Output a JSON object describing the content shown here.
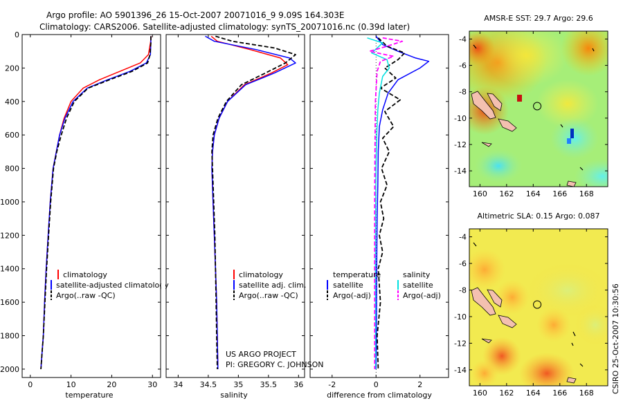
{
  "header": {
    "line1": "Argo profile: AO 5901396_26 15-Oct-2007 20071016_9 9.09S 164.303E",
    "line2": "Climatology: CARS2006. Satellite-adjusted climatology: synTS_20071016.nc (0.39d later)"
  },
  "side_stamp": "CSIRO 25-Oct-2007 10:30:56",
  "project_note": {
    "line1": "US ARGO PROJECT",
    "line2": "PI: GREGORY C. JOHNSON"
  },
  "colors": {
    "red": "#ff0000",
    "blue": "#0000ff",
    "black": "#000000",
    "cyan": "#00e0e0",
    "magenta": "#ff00ff"
  },
  "chart_data": [
    {
      "type": "line",
      "id": "temperature",
      "xlabel": "temperature",
      "xlim": [
        -2,
        32
      ],
      "ylim": [
        0,
        2050
      ],
      "xticks": [
        0,
        10,
        20,
        30
      ],
      "yticks": [
        0,
        200,
        400,
        600,
        800,
        1000,
        1200,
        1400,
        1600,
        1800,
        2000
      ],
      "ytick_labels": [
        "0",
        "200",
        "400",
        "600",
        "800",
        "1000",
        "1200",
        "1400",
        "1600",
        "1800",
        "2000"
      ],
      "legend": [
        {
          "label": "climatology",
          "color": "#ff0000",
          "dash": false
        },
        {
          "label": "satellite-adjusted climatology",
          "color": "#0000ff",
          "dash": false
        },
        {
          "label": "Argo(..raw -QC)",
          "color": "#000000",
          "dash": true
        }
      ],
      "series": [
        {
          "name": "climatology",
          "color": "#ff0000",
          "dash": false,
          "x": [
            29.7,
            29.5,
            29.0,
            27.0,
            22.0,
            17.0,
            13.0,
            10.0,
            8.3,
            7.2,
            6.4,
            5.6,
            4.9,
            4.4,
            3.9,
            3.5,
            3.2,
            2.9,
            2.6
          ],
          "y": [
            10,
            50,
            120,
            170,
            220,
            270,
            320,
            400,
            500,
            600,
            700,
            800,
            1000,
            1200,
            1400,
            1600,
            1800,
            1900,
            2000
          ]
        },
        {
          "name": "satellite-adjusted climatology",
          "color": "#0000ff",
          "dash": false,
          "x": [
            29.6,
            29.6,
            29.5,
            28.5,
            24.5,
            19.0,
            14.0,
            10.5,
            8.5,
            7.2,
            6.4,
            5.6,
            4.9,
            4.4,
            3.9,
            3.5,
            3.2,
            2.9,
            2.6
          ],
          "y": [
            10,
            50,
            120,
            170,
            220,
            270,
            320,
            400,
            500,
            600,
            700,
            800,
            1000,
            1200,
            1400,
            1600,
            1800,
            1900,
            2000
          ]
        },
        {
          "name": "Argo(..raw -QC)",
          "color": "#000000",
          "dash": true,
          "x": [
            29.6,
            29.6,
            29.4,
            28.8,
            25.0,
            19.5,
            14.2,
            10.8,
            8.9,
            7.6,
            6.5,
            5.7,
            5.0,
            4.5,
            4.0,
            3.6,
            3.2,
            2.9,
            2.6
          ],
          "y": [
            10,
            50,
            120,
            170,
            220,
            270,
            320,
            400,
            500,
            600,
            700,
            800,
            1000,
            1200,
            1400,
            1600,
            1800,
            1900,
            2000
          ]
        }
      ]
    },
    {
      "type": "line",
      "id": "salinity",
      "xlabel": "salinity",
      "xlim": [
        33.8,
        36.1
      ],
      "ylim": [
        0,
        2050
      ],
      "xticks": [
        34,
        34.5,
        35,
        35.5,
        36
      ],
      "xtick_labels": [
        "34",
        "34.5",
        "35",
        "35.5",
        "36"
      ],
      "legend": [
        {
          "label": "climatology",
          "color": "#ff0000",
          "dash": false
        },
        {
          "label": "satellite adj. clim.",
          "color": "#0000ff",
          "dash": false
        },
        {
          "label": "Argo(..raw -QC)",
          "color": "#000000",
          "dash": true
        }
      ],
      "series": [
        {
          "name": "climatology",
          "color": "#ff0000",
          "dash": false,
          "x": [
            34.55,
            34.65,
            35.2,
            35.7,
            35.82,
            35.55,
            35.1,
            34.82,
            34.68,
            34.6,
            34.57,
            34.56,
            34.58,
            34.6,
            34.62,
            34.64,
            34.65,
            34.66
          ],
          "y": [
            10,
            40,
            90,
            140,
            180,
            230,
            300,
            400,
            500,
            600,
            700,
            800,
            1000,
            1200,
            1400,
            1600,
            1800,
            2000
          ]
        },
        {
          "name": "satellite adj. clim.",
          "color": "#0000ff",
          "dash": false,
          "x": [
            34.45,
            34.6,
            35.3,
            35.85,
            35.95,
            35.6,
            35.12,
            34.82,
            34.68,
            34.6,
            34.57,
            34.56,
            34.58,
            34.6,
            34.62,
            34.64,
            34.65,
            34.66
          ],
          "y": [
            10,
            40,
            90,
            140,
            170,
            230,
            300,
            400,
            500,
            600,
            700,
            800,
            1000,
            1200,
            1400,
            1600,
            1800,
            2000
          ]
        },
        {
          "name": "Argo(..raw -QC)",
          "color": "#000000",
          "dash": true,
          "x": [
            34.62,
            34.9,
            35.6,
            35.95,
            35.78,
            35.45,
            35.05,
            34.8,
            34.66,
            34.58,
            34.56,
            34.57,
            34.59,
            34.61,
            34.62,
            34.63,
            34.64,
            34.65
          ],
          "y": [
            10,
            40,
            80,
            120,
            170,
            230,
            300,
            400,
            500,
            600,
            700,
            800,
            1000,
            1200,
            1400,
            1600,
            1800,
            2000
          ]
        }
      ]
    },
    {
      "type": "line",
      "id": "difference",
      "xlabel": "difference from climatology",
      "xlim": [
        -3,
        3.3
      ],
      "ylim": [
        0,
        2050
      ],
      "xticks": [
        -2,
        0,
        2
      ],
      "legend_temperature_title": "temperature",
      "legend_salinity_title": "salinity",
      "legend": [
        {
          "group": "temperature",
          "label": "satellite",
          "color": "#0000ff",
          "dash": false
        },
        {
          "group": "temperature",
          "label": "Argo(-adj)",
          "color": "#000000",
          "dash": true
        },
        {
          "group": "salinity",
          "label": "satellite",
          "color": "#00e0e0",
          "dash": false
        },
        {
          "group": "salinity",
          "label": "Argo(-adj)",
          "color": "#ff00ff",
          "dash": true
        }
      ],
      "series": [
        {
          "name": "temperature satellite",
          "color": "#0000ff",
          "dash": false,
          "x": [
            0.0,
            0.3,
            1.0,
            1.8,
            2.4,
            2.0,
            1.0,
            0.55,
            0.3,
            0.15,
            0.1,
            0.08,
            0.05,
            0.03,
            0.02,
            0.01,
            0.0
          ],
          "y": [
            10,
            60,
            100,
            140,
            160,
            200,
            270,
            350,
            450,
            550,
            700,
            900,
            1100,
            1400,
            1700,
            1900,
            2000
          ]
        },
        {
          "name": "temperature Argo(-adj)",
          "color": "#000000",
          "dash": true,
          "x": [
            0.1,
            0.5,
            1.3,
            1.0,
            0.4,
            0.9,
            0.2,
            1.1,
            0.4,
            0.8,
            0.3,
            0.6,
            0.25,
            0.5,
            0.2,
            0.35,
            0.15,
            0.3,
            0.1,
            0.2,
            0.05,
            0.1
          ],
          "y": [
            20,
            70,
            110,
            150,
            200,
            260,
            320,
            390,
            460,
            550,
            620,
            700,
            800,
            900,
            1000,
            1100,
            1200,
            1300,
            1400,
            1600,
            1800,
            2000
          ]
        },
        {
          "name": "salinity satellite",
          "color": "#00e0e0",
          "dash": false,
          "x": [
            -0.4,
            0.3,
            -0.2,
            0.5,
            0.6,
            0.3,
            0.15,
            0.08,
            0.03,
            0.0,
            -0.02,
            -0.03,
            -0.02,
            -0.02
          ],
          "y": [
            20,
            50,
            110,
            150,
            200,
            250,
            350,
            450,
            600,
            800,
            1100,
            1400,
            1700,
            2000
          ]
        },
        {
          "name": "salinity Argo(-adj)",
          "color": "#ff00ff",
          "dash": true,
          "x": [
            0.3,
            1.2,
            0.5,
            -0.3,
            0.8,
            0.2,
            0.05,
            -0.03,
            -0.05,
            -0.06,
            -0.06,
            -0.06,
            -0.06
          ],
          "y": [
            20,
            40,
            70,
            100,
            130,
            160,
            220,
            400,
            700,
            1000,
            1300,
            1600,
            2000
          ]
        }
      ]
    },
    {
      "type": "heatmap",
      "id": "sst_map",
      "title": "AMSR-E SST: 29.7 Argo: 29.6",
      "xlim": [
        159.2,
        169.6
      ],
      "ylim": [
        -15.2,
        -3.4
      ],
      "xticks": [
        160,
        162,
        164,
        166,
        168
      ],
      "yticks": [
        -4,
        -6,
        -8,
        -10,
        -12,
        -14
      ],
      "profile_marker": {
        "lon": 164.3,
        "lat": -9.09
      }
    },
    {
      "type": "heatmap",
      "id": "sla_map",
      "title": "Altimetric SLA: 0.15 Argo: 0.087",
      "xlim": [
        159.2,
        169.6
      ],
      "ylim": [
        -15.2,
        -3.4
      ],
      "xticks": [
        160,
        162,
        164,
        166,
        168
      ],
      "yticks": [
        -4,
        -6,
        -8,
        -10,
        -12,
        -14
      ],
      "profile_marker": {
        "lon": 164.3,
        "lat": -9.09
      }
    }
  ]
}
